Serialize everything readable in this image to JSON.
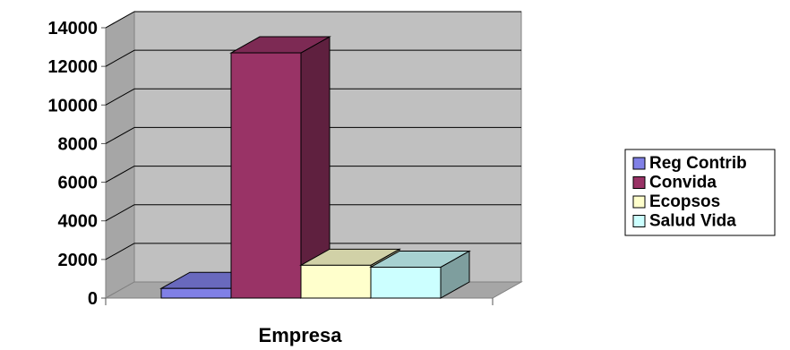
{
  "chart_data": {
    "type": "bar",
    "style": "3d-clustered-column",
    "title": "",
    "xlabel": "Empresa",
    "ylabel": "",
    "ylim": [
      0,
      14000
    ],
    "yticks": [
      "0",
      "2000",
      "4000",
      "6000",
      "8000",
      "10000",
      "12000",
      "14000"
    ],
    "grid": true,
    "legend_position": "right",
    "categories": [
      "Empresa"
    ],
    "series": [
      {
        "name": "Reg Contrib",
        "values": [
          500
        ],
        "color": "#8080e6"
      },
      {
        "name": "Convida",
        "values": [
          12700
        ],
        "color": "#993366"
      },
      {
        "name": "Ecopsos",
        "values": [
          1700
        ],
        "color": "#ffffcc"
      },
      {
        "name": "Salud Vida",
        "values": [
          1600
        ],
        "color": "#ccffff"
      }
    ]
  }
}
